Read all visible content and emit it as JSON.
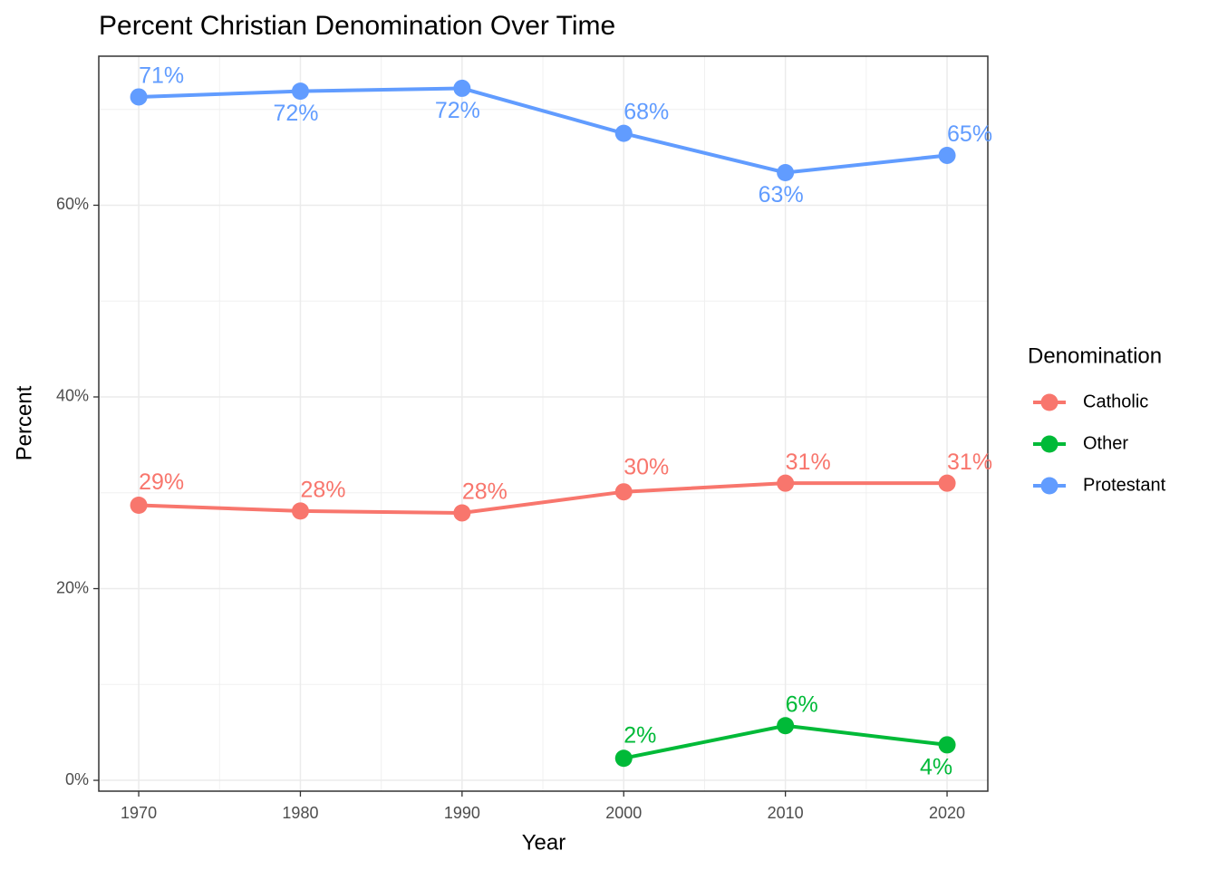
{
  "chart_data": {
    "type": "line",
    "title": "Percent Christian Denomination Over Time",
    "x_label": "Year",
    "y_label": "Percent",
    "legend_title": "Denomination",
    "legend_position": "right",
    "x": [
      1970,
      1980,
      1990,
      2000,
      2010,
      2020
    ],
    "series": [
      {
        "name": "Catholic",
        "color": "#F8766D",
        "values": [
          28.7,
          28.1,
          27.9,
          30.1,
          31.0,
          31.0
        ],
        "value_labels": [
          "29%",
          "28%",
          "28%",
          "30%",
          "31%",
          "31%"
        ]
      },
      {
        "name": "Other",
        "color": "#00BA38",
        "values": [
          null,
          null,
          null,
          2.3,
          5.7,
          3.7
        ],
        "value_labels": [
          null,
          null,
          null,
          "2%",
          "6%",
          "4%"
        ]
      },
      {
        "name": "Protestant",
        "color": "#619CFF",
        "values": [
          71.3,
          71.9,
          72.2,
          67.5,
          63.4,
          65.2
        ],
        "value_labels": [
          "71%",
          "72%",
          "72%",
          "68%",
          "63%",
          "65%"
        ]
      }
    ],
    "xlim": [
      1967.53,
      2022.52
    ],
    "ylim": [
      -1.13,
      75.55
    ],
    "xticks": [
      1970,
      1980,
      1990,
      2000,
      2010,
      2020
    ],
    "yticks": [
      {
        "value": 0,
        "label": "0%"
      },
      {
        "value": 20,
        "label": "20%"
      },
      {
        "value": 40,
        "label": "40%"
      },
      {
        "value": 60,
        "label": "60%"
      }
    ],
    "grid": true,
    "minor_grid": true
  }
}
